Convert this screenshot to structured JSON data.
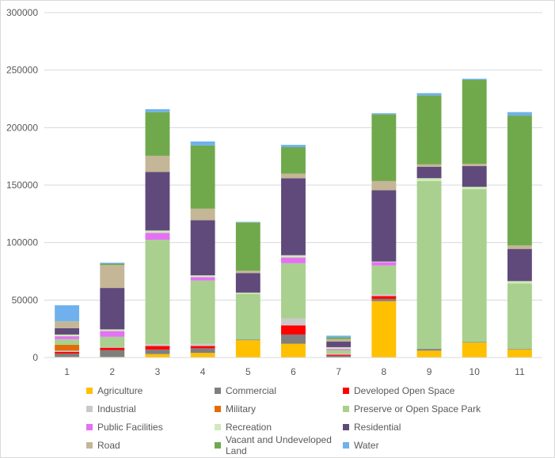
{
  "chart_data": {
    "type": "bar",
    "stacked": true,
    "title": "",
    "xlabel": "",
    "ylabel": "",
    "ylim": [
      0,
      300000
    ],
    "yticks": [
      0,
      50000,
      100000,
      150000,
      200000,
      250000,
      300000
    ],
    "ytick_labels": [
      "0",
      "50000",
      "100000",
      "150000",
      "200000",
      "250000",
      "300000"
    ],
    "grid": true,
    "legend_position": "bottom",
    "categories": [
      "1",
      "2",
      "3",
      "4",
      "5",
      "6",
      "7",
      "8",
      "9",
      "10",
      "11"
    ],
    "series": [
      {
        "name": "Agriculture",
        "color": "#ffc000",
        "values": [
          500,
          500,
          3000,
          4000,
          15000,
          12000,
          0,
          49000,
          6000,
          13000,
          7000
        ]
      },
      {
        "name": "Commercial",
        "color": "#7f7f7f",
        "values": [
          3000,
          6000,
          4000,
          4000,
          500,
          8000,
          1500,
          2000,
          1500,
          500,
          500
        ]
      },
      {
        "name": "Developed Open Space",
        "color": "#ff0000",
        "values": [
          1500,
          2000,
          3000,
          2000,
          0,
          8000,
          1000,
          2500,
          0,
          0,
          0
        ]
      },
      {
        "name": "Industrial",
        "color": "#c9c9c9",
        "values": [
          1000,
          500,
          1500,
          2000,
          0,
          6000,
          1000,
          1500,
          0,
          0,
          0
        ]
      },
      {
        "name": "Military",
        "color": "#e36c09",
        "values": [
          5000,
          0,
          0,
          0,
          0,
          0,
          0,
          0,
          0,
          0,
          0
        ]
      },
      {
        "name": "Preserve or Open Space Park",
        "color": "#a9d08e",
        "values": [
          5000,
          9000,
          91000,
          55000,
          40000,
          48000,
          3000,
          25000,
          146000,
          133000,
          57000
        ]
      },
      {
        "name": "Public Facilities",
        "color": "#e371f4",
        "values": [
          2500,
          5000,
          6000,
          3000,
          0,
          5000,
          1000,
          3000,
          0,
          0,
          0
        ]
      },
      {
        "name": "Recreation",
        "color": "#d0eab8",
        "values": [
          1500,
          1500,
          2000,
          1500,
          1000,
          2000,
          1500,
          500,
          2500,
          2000,
          2000
        ]
      },
      {
        "name": "Residential",
        "color": "#604a7b",
        "values": [
          5500,
          36000,
          51000,
          48000,
          17000,
          67000,
          5000,
          62000,
          10000,
          18000,
          28000
        ]
      },
      {
        "name": "Road",
        "color": "#c4b696",
        "values": [
          6000,
          20000,
          14000,
          10000,
          2000,
          4000,
          2000,
          8000,
          2000,
          2000,
          3000
        ]
      },
      {
        "name": "Vacant and Undeveloped Land",
        "color": "#70a94c",
        "values": [
          0,
          1000,
          38000,
          55000,
          42000,
          23000,
          1500,
          58000,
          60000,
          73000,
          113000
        ]
      },
      {
        "name": "Water",
        "color": "#6fb1ec",
        "values": [
          14000,
          1000,
          2500,
          3500,
          500,
          2000,
          1500,
          1000,
          2000,
          1000,
          3000
        ]
      }
    ]
  }
}
